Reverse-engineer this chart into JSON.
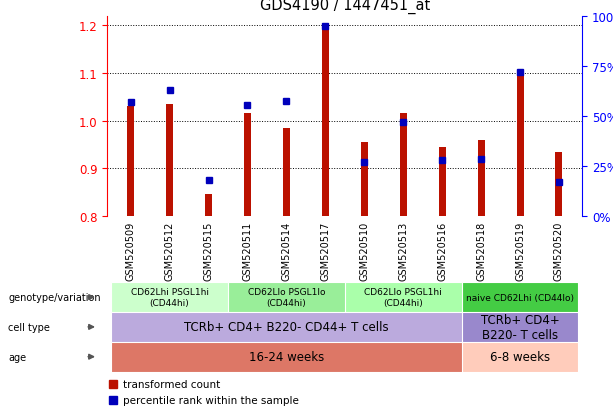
{
  "title": "GDS4190 / 1447451_at",
  "samples": [
    "GSM520509",
    "GSM520512",
    "GSM520515",
    "GSM520511",
    "GSM520514",
    "GSM520517",
    "GSM520510",
    "GSM520513",
    "GSM520516",
    "GSM520518",
    "GSM520519",
    "GSM520520"
  ],
  "red_values": [
    1.03,
    1.035,
    0.845,
    1.015,
    0.985,
    1.2,
    0.955,
    1.015,
    0.945,
    0.96,
    1.1,
    0.935
  ],
  "blue_values": [
    0.57,
    0.63,
    0.18,
    0.555,
    0.575,
    0.95,
    0.27,
    0.47,
    0.28,
    0.285,
    0.72,
    0.17
  ],
  "ylim_left": [
    0.8,
    1.22
  ],
  "yticks_left": [
    0.8,
    0.9,
    1.0,
    1.1,
    1.2
  ],
  "yticks_right": [
    0,
    25,
    50,
    75,
    100
  ],
  "ytick_labels_right": [
    "0%",
    "25%",
    "50%",
    "75%",
    "100%"
  ],
  "bar_color": "#bb1100",
  "dot_color": "#0000bb",
  "bar_bottom": 0.8,
  "bar_width": 0.18,
  "genotype_groups": [
    {
      "label": "CD62Lhi PSGL1hi\n(CD44hi)",
      "start": 0,
      "end": 3,
      "color": "#ccffcc"
    },
    {
      "label": "CD62Llo PSGL1lo\n(CD44hi)",
      "start": 3,
      "end": 6,
      "color": "#99ee99"
    },
    {
      "label": "CD62Llo PSGL1hi\n(CD44hi)",
      "start": 6,
      "end": 9,
      "color": "#aaffaa"
    },
    {
      "label": "naive CD62Lhi (CD44lo)",
      "start": 9,
      "end": 12,
      "color": "#44cc44"
    }
  ],
  "cell_type_groups": [
    {
      "label": "TCRb+ CD4+ B220- CD44+ T cells",
      "start": 0,
      "end": 9,
      "color": "#bbaadd"
    },
    {
      "label": "TCRb+ CD4+\nB220- T cells",
      "start": 9,
      "end": 12,
      "color": "#9988cc"
    }
  ],
  "age_groups": [
    {
      "label": "16-24 weeks",
      "start": 0,
      "end": 9,
      "color": "#dd7766"
    },
    {
      "label": "6-8 weeks",
      "start": 9,
      "end": 12,
      "color": "#ffccbb"
    }
  ],
  "row_labels": [
    "genotype/variation",
    "cell type",
    "age"
  ],
  "legend_items": [
    {
      "label": "transformed count",
      "color": "#bb1100"
    },
    {
      "label": "percentile rank within the sample",
      "color": "#0000bb"
    }
  ],
  "bg_color": "#ffffff",
  "xtick_bg_color": "#bbbbbb"
}
